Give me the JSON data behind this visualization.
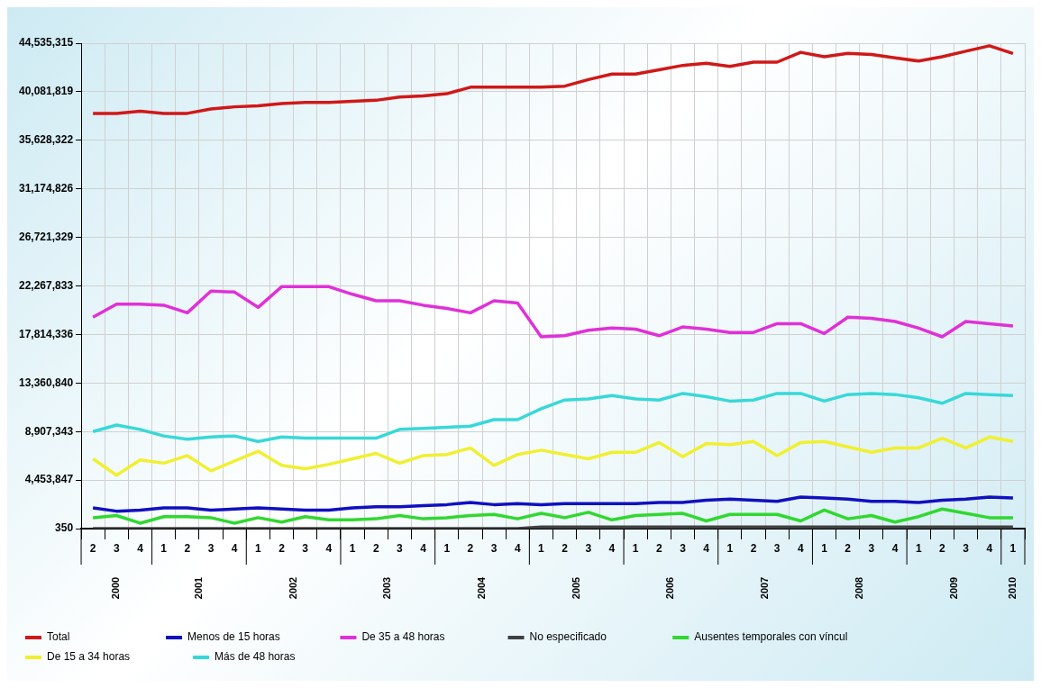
{
  "chart_data": {
    "type": "line",
    "categories": [
      "2",
      "3",
      "4",
      "1",
      "2",
      "3",
      "4",
      "1",
      "2",
      "3",
      "4",
      "1",
      "2",
      "3",
      "4",
      "1",
      "2",
      "3",
      "4",
      "1",
      "2",
      "3",
      "4",
      "1",
      "2",
      "3",
      "4",
      "1",
      "2",
      "3",
      "4",
      "1",
      "2",
      "3",
      "4",
      "1",
      "2",
      "3",
      "4",
      "1"
    ],
    "annotations": [
      "2000",
      "2001",
      "2002",
      "2003",
      "2004",
      "2005",
      "2006",
      "2007",
      "2008",
      "2009",
      "2010"
    ],
    "ylim": [
      350,
      44535315
    ],
    "yticks": [
      {
        "value": 350,
        "label": "350"
      },
      {
        "value": 4453847,
        "label": "4,453,847"
      },
      {
        "value": 8907343,
        "label": "8,907,343"
      },
      {
        "value": 13360840,
        "label": "13,360,840"
      },
      {
        "value": 17814336,
        "label": "17,814,336"
      },
      {
        "value": 22267833,
        "label": "22,267,833"
      },
      {
        "value": 26721329,
        "label": "26,721,329"
      },
      {
        "value": 31174826,
        "label": "31,174,826"
      },
      {
        "value": 35628322,
        "label": "35,628,322"
      },
      {
        "value": 40081819,
        "label": "40,081,819"
      },
      {
        "value": 44535315,
        "label": "44,535,315"
      }
    ],
    "grid": true,
    "legend": "bottom",
    "marker": "none",
    "line_style": "solid",
    "series": [
      {
        "name": "Total",
        "color": "#d01818",
        "values": [
          38100000,
          38100000,
          38300000,
          38100000,
          38100000,
          38500000,
          38700000,
          38800000,
          39000000,
          39100000,
          39100000,
          39200000,
          39300000,
          39600000,
          39700000,
          39900000,
          40500000,
          40500000,
          40500000,
          40500000,
          40600000,
          41200000,
          41700000,
          41700000,
          42100000,
          42500000,
          42700000,
          42400000,
          42800000,
          42800000,
          43700000,
          43300000,
          43600000,
          43500000,
          43200000,
          42900000,
          43300000,
          43800000,
          44300000,
          43600000
        ]
      },
      {
        "name": "Menos de 15 horas",
        "color": "#1010c0",
        "values": [
          1900000,
          1600000,
          1700000,
          1900000,
          1900000,
          1700000,
          1800000,
          1900000,
          1800000,
          1700000,
          1700000,
          1900000,
          2000000,
          2000000,
          2100000,
          2200000,
          2400000,
          2200000,
          2300000,
          2200000,
          2300000,
          2300000,
          2300000,
          2300000,
          2400000,
          2400000,
          2600000,
          2700000,
          2600000,
          2500000,
          2900000,
          2800000,
          2700000,
          2500000,
          2500000,
          2400000,
          2600000,
          2700000,
          2900000,
          2800000
        ]
      },
      {
        "name": "De 35 a 48 horas",
        "color": "#e030d8",
        "values": [
          19400000,
          20600000,
          20600000,
          20500000,
          19800000,
          21800000,
          21700000,
          20300000,
          22200000,
          22200000,
          22200000,
          21500000,
          20900000,
          20900000,
          20500000,
          20200000,
          19800000,
          20900000,
          20700000,
          17600000,
          17700000,
          18200000,
          18400000,
          18300000,
          17700000,
          18500000,
          18300000,
          18000000,
          18000000,
          18800000,
          18800000,
          17900000,
          19400000,
          19300000,
          19000000,
          18400000,
          17600000,
          19000000,
          18800000,
          18600000
        ]
      },
      {
        "name": "No especificado",
        "color": "#404040",
        "values": [
          350,
          350,
          350,
          350,
          350,
          350,
          350,
          350,
          350,
          350,
          350,
          350,
          350,
          350,
          350,
          350,
          350,
          350,
          350,
          150000,
          150000,
          150000,
          150000,
          150000,
          150000,
          150000,
          150000,
          150000,
          150000,
          150000,
          150000,
          150000,
          150000,
          150000,
          150000,
          150000,
          150000,
          150000,
          150000,
          150000
        ]
      },
      {
        "name": "Ausentes temporales con víncul",
        "color": "#30d830",
        "values": [
          1000000,
          1200000,
          500000,
          1100000,
          1100000,
          1000000,
          500000,
          1000000,
          600000,
          1100000,
          800000,
          800000,
          900000,
          1200000,
          900000,
          1000000,
          1200000,
          1300000,
          900000,
          1400000,
          1000000,
          1500000,
          800000,
          1200000,
          1300000,
          1400000,
          700000,
          1300000,
          1300000,
          1300000,
          700000,
          1700000,
          900000,
          1200000,
          600000,
          1100000,
          1800000,
          1400000,
          1000000,
          1000000
        ]
      },
      {
        "name": "De 15 a 34 horas",
        "color": "#f0f030",
        "values": [
          6400000,
          4900000,
          6300000,
          6000000,
          6700000,
          5300000,
          6200000,
          7100000,
          5800000,
          5500000,
          5900000,
          6400000,
          6900000,
          6000000,
          6700000,
          6800000,
          7400000,
          5800000,
          6800000,
          7200000,
          6800000,
          6400000,
          7000000,
          7000000,
          7900000,
          6600000,
          7800000,
          7700000,
          8000000,
          6700000,
          7900000,
          8000000,
          7500000,
          7000000,
          7400000,
          7400000,
          8300000,
          7400000,
          8400000,
          8000000
        ]
      },
      {
        "name": "Más de 48 horas",
        "color": "#38d8d8",
        "values": [
          8900000,
          9500000,
          9100000,
          8500000,
          8200000,
          8400000,
          8500000,
          8000000,
          8400000,
          8300000,
          8300000,
          8300000,
          8300000,
          9100000,
          9200000,
          9300000,
          9400000,
          10000000,
          10000000,
          11000000,
          11800000,
          11900000,
          12200000,
          11900000,
          11800000,
          12400000,
          12100000,
          11700000,
          11800000,
          12400000,
          12400000,
          11700000,
          12300000,
          12400000,
          12300000,
          12000000,
          11500000,
          12400000,
          12300000,
          12200000
        ]
      }
    ]
  }
}
